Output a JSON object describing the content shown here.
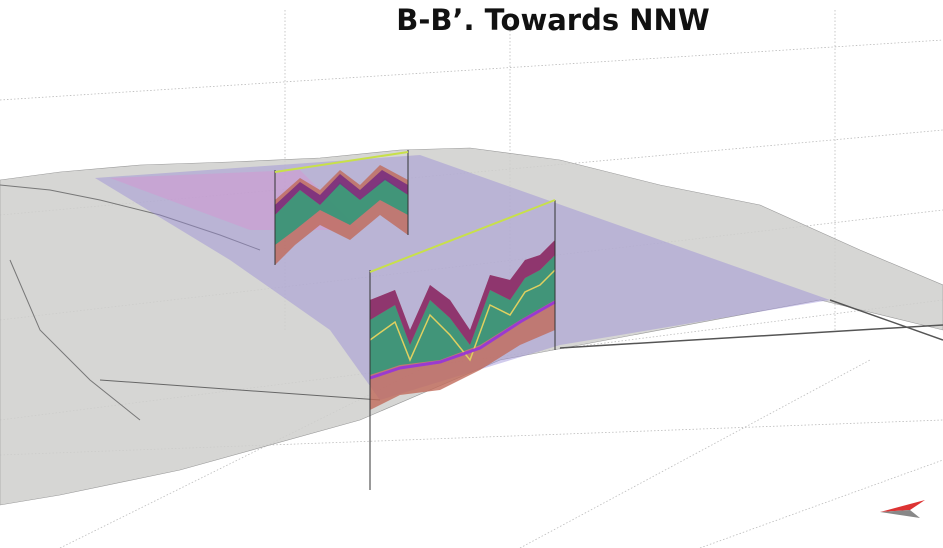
{
  "title": "B-B’. Towards NNW"
}
